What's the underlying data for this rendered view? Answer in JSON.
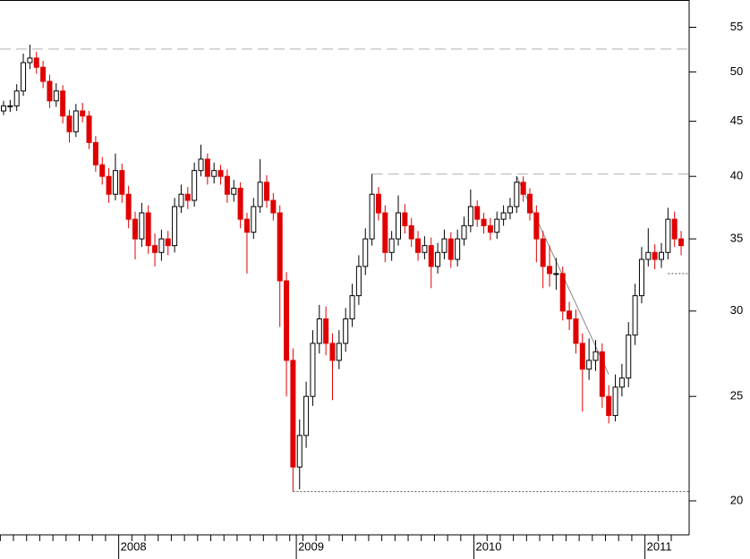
{
  "chart_data": {
    "type": "candlestick",
    "log_scale": true,
    "up_color": "#ffffff",
    "up_edge": "#000000",
    "down_color": "#e00000",
    "ylim": [
      18.6,
      58.3
    ],
    "yticks": [
      20,
      25,
      30,
      35,
      40,
      45,
      50,
      55
    ],
    "categories": [
      null,
      null,
      null,
      null,
      null,
      null,
      null,
      null,
      null,
      null,
      null,
      null,
      null,
      null,
      null,
      null,
      null,
      null,
      "2008",
      null,
      null,
      null,
      null,
      null,
      null,
      null,
      null,
      null,
      null,
      null,
      null,
      null,
      null,
      null,
      null,
      null,
      null,
      null,
      null,
      null,
      null,
      null,
      null,
      null,
      null,
      "2009",
      null,
      null,
      null,
      null,
      null,
      null,
      null,
      null,
      null,
      null,
      null,
      null,
      null,
      null,
      null,
      null,
      null,
      null,
      null,
      null,
      null,
      null,
      null,
      null,
      null,
      null,
      "2010",
      null,
      null,
      null,
      null,
      null,
      null,
      null,
      null,
      null,
      null,
      null,
      null,
      null,
      null,
      null,
      null,
      null,
      null,
      null,
      null,
      null,
      null,
      null,
      null,
      null,
      "2011",
      null,
      null,
      null,
      null,
      null
    ],
    "open": [
      46,
      46.5,
      46.5,
      48,
      51,
      51.5,
      50.5,
      49,
      47,
      48,
      45.5,
      44,
      46,
      45.5,
      43,
      41,
      40,
      38.5,
      40.5,
      38.5,
      36.5,
      35,
      37,
      34.5,
      34,
      35,
      34.5,
      37.5,
      38.5,
      38,
      40.5,
      41.5,
      40,
      40.5,
      40,
      38.5,
      39,
      36.5,
      35.5,
      37.5,
      39.5,
      38,
      37,
      32,
      27,
      21.5,
      23,
      25,
      28,
      29.5,
      28,
      27,
      28,
      29.5,
      31,
      33,
      35,
      38.5,
      37,
      34,
      35,
      37,
      36,
      35,
      34,
      34.5,
      33,
      34,
      35,
      33.5,
      35,
      36,
      37.5,
      36.5,
      36,
      35.5,
      36.5,
      37,
      37.5,
      39.5,
      38.5,
      37,
      35,
      33,
      32.5,
      32.5,
      30,
      29.5,
      28,
      26.5,
      27,
      27.5,
      25,
      24,
      25.5,
      26,
      28.5,
      31,
      33.5,
      34,
      33.5,
      34,
      36.5,
      35
    ],
    "high": [
      47,
      47.1,
      48.7,
      52,
      53,
      52.2,
      51.2,
      49.7,
      48.8,
      48.6,
      46.1,
      46.7,
      46.8,
      46,
      43.6,
      41.7,
      40.7,
      42,
      41.1,
      39.2,
      37.1,
      37.8,
      37.6,
      35.4,
      35.7,
      35.6,
      38.2,
      39.3,
      39.1,
      41.2,
      42.8,
      42,
      41.2,
      41,
      40.6,
      39.7,
      39.5,
      37,
      38.2,
      41.5,
      40.1,
      38.6,
      37.6,
      32.6,
      27.7,
      23.8,
      25.8,
      28.8,
      30.4,
      30.3,
      28.6,
      28.8,
      30.2,
      31.8,
      33.8,
      35.8,
      40.2,
      39.1,
      37.6,
      35.6,
      38.4,
      37.7,
      36.6,
      35.6,
      35.2,
      35.1,
      34.7,
      35.7,
      35.5,
      35.7,
      36.7,
      38.9,
      38,
      37,
      36.6,
      37.1,
      37.6,
      38.2,
      40,
      40,
      39,
      37.6,
      35.6,
      34.5,
      33.6,
      33,
      30.6,
      30.1,
      28.6,
      28.3,
      28.2,
      28,
      25.6,
      26.2,
      26.8,
      29.3,
      31.8,
      34.4,
      35.8,
      34.6,
      34.7,
      37.4,
      37.1,
      35.6
    ],
    "low": [
      45.6,
      45.9,
      46,
      47.5,
      50.3,
      49.8,
      48.3,
      46.3,
      46.4,
      44.8,
      43,
      43.5,
      44.9,
      42.4,
      40.4,
      39.3,
      37.8,
      38,
      37.8,
      35.8,
      33.5,
      34.4,
      33.9,
      33,
      33.4,
      33.8,
      34,
      37,
      37.3,
      37.5,
      40,
      39.3,
      39.4,
      39.3,
      37.8,
      37.9,
      35.8,
      32.5,
      35,
      37,
      37.4,
      36.4,
      29,
      25,
      20.4,
      20.5,
      22.4,
      24.5,
      27.4,
      27.3,
      24.8,
      26.5,
      27.5,
      29,
      30.4,
      32.4,
      34.5,
      36.4,
      33.3,
      33.4,
      34.5,
      35.4,
      34.4,
      33.4,
      33.5,
      31.5,
      32.5,
      33.5,
      32.9,
      33,
      34.5,
      35.5,
      35.9,
      35.4,
      34.9,
      35,
      36,
      36.5,
      37,
      37.9,
      36.4,
      33.3,
      31.5,
      31.6,
      31.4,
      29.4,
      28.8,
      27.4,
      24.2,
      25.9,
      26.4,
      24.4,
      23.6,
      23.7,
      25,
      25.5,
      27.9,
      30.5,
      33,
      32.8,
      32.9,
      33.5,
      34.4,
      33.8
    ],
    "close": [
      46.5,
      46.5,
      48,
      51,
      51.5,
      50.5,
      49,
      47,
      48,
      45.5,
      44,
      46,
      45.5,
      43,
      41,
      40,
      38.5,
      40.5,
      38.5,
      36.5,
      35,
      37,
      34.5,
      34,
      35,
      34.5,
      37.5,
      38.5,
      38,
      40.5,
      41.5,
      40,
      40.5,
      40,
      38.5,
      39,
      36.5,
      35.5,
      37.5,
      39.5,
      38,
      37,
      32,
      27,
      21.5,
      23,
      25,
      28,
      29.5,
      28,
      27,
      28,
      29.5,
      31,
      33,
      35,
      38.5,
      37,
      34,
      35,
      37,
      36,
      35,
      34,
      34.5,
      33,
      34,
      35,
      33.5,
      35,
      36,
      37.5,
      36.5,
      36,
      35.5,
      36.5,
      37,
      37.5,
      39.5,
      38.5,
      37,
      35,
      33,
      32.5,
      32.5,
      30,
      29.5,
      28,
      26.5,
      27,
      27.5,
      25,
      24,
      25.5,
      26,
      28.5,
      31,
      33.5,
      34,
      33.5,
      34,
      36.5,
      35,
      34.5
    ],
    "reference_lines": [
      {
        "value": 52.5,
        "start": 0,
        "style": "dashed",
        "color": "#b0b0b0"
      },
      {
        "value": 40.2,
        "start": 56,
        "style": "dashed",
        "color": "#b0b0b0"
      },
      {
        "value": 20.4,
        "start": 44,
        "style": "dotted",
        "color": "#555555"
      },
      {
        "value": 32.5,
        "start": 101,
        "style": "dotted",
        "color": "#555555"
      }
    ],
    "trend_line": {
      "start": [
        78,
        40
      ],
      "end": [
        92,
        26.2
      ],
      "color": "#888888"
    }
  }
}
